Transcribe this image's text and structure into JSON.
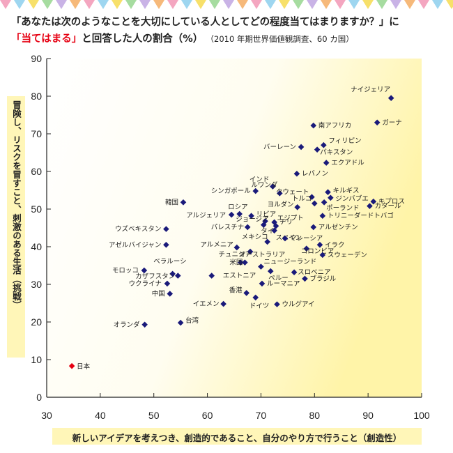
{
  "title": {
    "line1": "「あなたは次のようなことを大切にしている人としてどの程度当てはまりますか？」に",
    "highlight": "「当てはまる」",
    "line2_rest": "と回答した人の割合（%）",
    "source": "（2010 年期世界価値観調査、60 カ国）"
  },
  "chart_data": {
    "type": "scatter",
    "xlabel": "新しいアイデアを考えつき、創造的であること、自分のやり方で行うこと（創造性）",
    "ylabel": "冒険し、リスクを冒すこと、刺激のある生活（挑戦）",
    "xlim": [
      30,
      100
    ],
    "ylim": [
      0,
      90
    ],
    "xticks": [
      30,
      40,
      50,
      60,
      70,
      80,
      90,
      100
    ],
    "yticks": [
      0,
      10,
      20,
      30,
      40,
      50,
      60,
      70,
      80,
      90
    ],
    "grid": false,
    "marker_color": "#1a1a7a",
    "highlight_color": "#e60012",
    "points": [
      {
        "label": "ナイジェリア",
        "x": 94.3,
        "y": 79.5
      },
      {
        "label": "ガーナ",
        "x": 91.7,
        "y": 73.0
      },
      {
        "label": "南アフリカ",
        "x": 79.8,
        "y": 72.2
      },
      {
        "label": "フィリピン",
        "x": 81.7,
        "y": 67.0
      },
      {
        "label": "バーレーン",
        "x": 77.5,
        "y": 66.5
      },
      {
        "label": "パキスタン",
        "x": 80.5,
        "y": 65.8
      },
      {
        "label": "エクアドル",
        "x": 82.2,
        "y": 62.3
      },
      {
        "label": "レバノン",
        "x": 76.7,
        "y": 59.4
      },
      {
        "label": "インド",
        "x": 72.2,
        "y": 56.0
      },
      {
        "label": "ルワンダ",
        "x": 73.5,
        "y": 54.2
      },
      {
        "label": "シンガポール",
        "x": 69.0,
        "y": 54.8
      },
      {
        "label": "キルギス",
        "x": 82.5,
        "y": 54.5
      },
      {
        "label": "クウェート",
        "x": 79.5,
        "y": 53.2
      },
      {
        "label": "ジンバブエ",
        "x": 83.0,
        "y": 53.0
      },
      {
        "label": "キプロス",
        "x": 91.0,
        "y": 52.0
      },
      {
        "label": "トルコ",
        "x": 80.0,
        "y": 51.5
      },
      {
        "label": "ポーランド",
        "x": 81.8,
        "y": 51.8
      },
      {
        "label": "カタール",
        "x": 90.3,
        "y": 50.8
      },
      {
        "label": "韓国",
        "x": 55.5,
        "y": 51.8
      },
      {
        "label": "ヨルダン",
        "x": 76.8,
        "y": 50.5
      },
      {
        "label": "ロシア",
        "x": 66.0,
        "y": 48.7
      },
      {
        "label": "アルジェリア",
        "x": 64.5,
        "y": 48.5
      },
      {
        "label": "リビア",
        "x": 68.2,
        "y": 48.2
      },
      {
        "label": "トリニーダードトバゴ",
        "x": 81.5,
        "y": 48.2
      },
      {
        "label": "エジプト",
        "x": 72.5,
        "y": 46.5
      },
      {
        "label": "ジョージア",
        "x": 70.8,
        "y": 46.8
      },
      {
        "label": "パレスチナ",
        "x": 67.5,
        "y": 45.2
      },
      {
        "label": "タイ",
        "x": 70.5,
        "y": 45.8
      },
      {
        "label": "チリ",
        "x": 72.8,
        "y": 45.5
      },
      {
        "label": "アルゼンチン",
        "x": 79.8,
        "y": 45.2
      },
      {
        "label": "ウズベキスタン",
        "x": 52.3,
        "y": 44.7
      },
      {
        "label": "スペイン",
        "x": 72.5,
        "y": 44.3
      },
      {
        "label": "メキシコ",
        "x": 71.2,
        "y": 41.3
      },
      {
        "label": "マレーシア",
        "x": 74.5,
        "y": 42.2
      },
      {
        "label": "アゼルバイジャン",
        "x": 52.3,
        "y": 40.5
      },
      {
        "label": "イラク",
        "x": 81.0,
        "y": 40.5
      },
      {
        "label": "アルメニア",
        "x": 65.5,
        "y": 39.8
      },
      {
        "label": "コロンビア",
        "x": 78.5,
        "y": 39.5
      },
      {
        "label": "チュニジア",
        "x": 68.0,
        "y": 38.7
      },
      {
        "label": "スウェーデン",
        "x": 81.5,
        "y": 37.8
      },
      {
        "label": "オーストラリア",
        "x": 66.2,
        "y": 35.8
      },
      {
        "label": "米国",
        "x": 67.0,
        "y": 35.8
      },
      {
        "label": "ニュージーランド",
        "x": 70.0,
        "y": 34.7
      },
      {
        "label": "モロッコ",
        "x": 48.2,
        "y": 33.7
      },
      {
        "label": "ベラルーシ",
        "x": 53.5,
        "y": 32.8
      },
      {
        "label": "スロベニア",
        "x": 76.2,
        "y": 33.2
      },
      {
        "label": "カザフスタン",
        "x": 54.5,
        "y": 32.3
      },
      {
        "label": "エストニア",
        "x": 60.8,
        "y": 32.3
      },
      {
        "label": "ペルー",
        "x": 71.8,
        "y": 33.5
      },
      {
        "label": "ブラジル",
        "x": 78.2,
        "y": 31.5
      },
      {
        "label": "ウクライナ",
        "x": 52.5,
        "y": 30.2
      },
      {
        "label": "ルーマニア",
        "x": 70.2,
        "y": 30.2
      },
      {
        "label": "中国",
        "x": 53.0,
        "y": 27.5
      },
      {
        "label": "香港",
        "x": 67.3,
        "y": 27.7
      },
      {
        "label": "ドイツ",
        "x": 69.0,
        "y": 26.5
      },
      {
        "label": "イエメン",
        "x": 63.0,
        "y": 24.8
      },
      {
        "label": "ウルグアイ",
        "x": 73.0,
        "y": 24.7
      },
      {
        "label": "台湾",
        "x": 55.0,
        "y": 19.8
      },
      {
        "label": "オランダ",
        "x": 48.3,
        "y": 19.3
      },
      {
        "label": "日本",
        "x": 34.7,
        "y": 8.3,
        "highlight": true
      }
    ]
  }
}
